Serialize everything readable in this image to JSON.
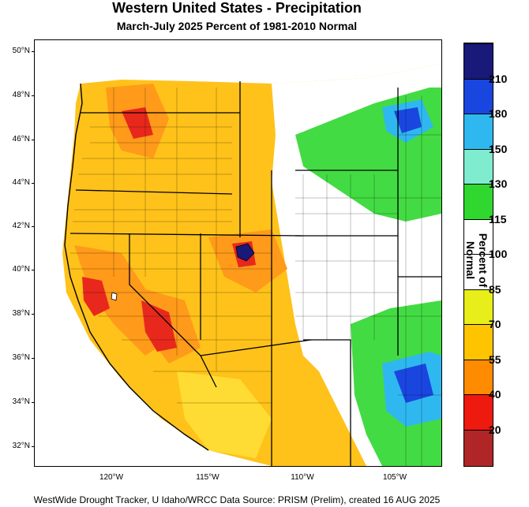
{
  "title": "Western United States - Precipitation",
  "subtitle": "March-July 2025  Percent of 1981-2010 Normal",
  "footer": "WestWide Drought Tracker, U Idaho/WRCC Data Source: PRISM (Prelim), created 16 AUG 2025",
  "latitude_labels": [
    "50°N",
    "48°N",
    "46°N",
    "44°N",
    "42°N",
    "40°N",
    "38°N",
    "36°N",
    "34°N",
    "32°N"
  ],
  "longitude_labels": [
    "120°W",
    "115°W",
    "110°W",
    "105°W"
  ],
  "colorbar": {
    "title": "Percent of Normal",
    "labels": [
      "210",
      "180",
      "150",
      "130",
      "115",
      "100",
      "85",
      "70",
      "55",
      "40",
      "20"
    ],
    "colors": [
      "#19197a",
      "#1a46e0",
      "#2fb8ef",
      "#7fecd0",
      "#2fd72f",
      "#ffffff",
      "#ffffff",
      "#e8ee1a",
      "#ffc400",
      "#ff8c00",
      "#ee1a10",
      "#b02626"
    ]
  },
  "map_colors": {
    "ocean": "#ffffff",
    "dry_red": "#e8281c",
    "dry_orange": "#ff9a1a",
    "dry_amber": "#ffc21a",
    "dry_yellow": "#ffe23a",
    "near_normal": "#ffffff",
    "wet_green": "#2fd72f",
    "wet_aqua": "#7fecd0",
    "wet_blue": "#2fb8ef",
    "very_wet": "#1a46e0"
  }
}
